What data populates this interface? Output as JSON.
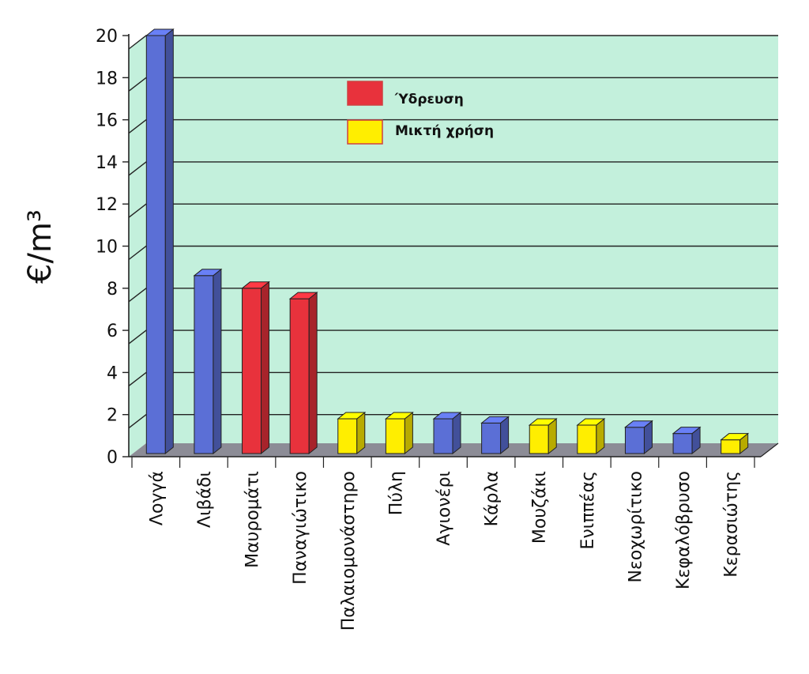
{
  "chart_data": {
    "type": "bar",
    "title": "",
    "xlabel": "",
    "ylabel": "€/m³",
    "ylim": [
      0,
      20
    ],
    "yticks": [
      0,
      2,
      4,
      6,
      8,
      10,
      12,
      14,
      16,
      18,
      20
    ],
    "grid": true,
    "legend_position": "top-center",
    "legend": [
      {
        "label": "Ύδρευση",
        "color": "#e8323c"
      },
      {
        "label": "Μικτή χρήση",
        "color": "#ffee00"
      }
    ],
    "categories": [
      "Λογγά",
      "Λιβάδι",
      "Μαυρομάτι",
      "Παναγιώτικο",
      "Παλαιομονάστηρο",
      "Πύλη",
      "Αγιονέρι",
      "Κάρλα",
      "Μουζάκι",
      "Ενιππέας",
      "Νεοχωρίτικο",
      "Κεφαλόβρυσο",
      "Κερασιώτης"
    ],
    "values": [
      20.0,
      8.6,
      8.0,
      7.5,
      1.8,
      1.8,
      1.8,
      1.6,
      1.5,
      1.5,
      1.4,
      1.1,
      0.8
    ],
    "bar_colors": [
      "#5b6fd6",
      "#5b6fd6",
      "#e8323c",
      "#e8323c",
      "#ffee00",
      "#ffee00",
      "#5b6fd6",
      "#5b6fd6",
      "#ffee00",
      "#ffee00",
      "#5b6fd6",
      "#5b6fd6",
      "#ffee00"
    ],
    "background_color": "#c3f0dc",
    "floor_color": "#8c8c96"
  }
}
